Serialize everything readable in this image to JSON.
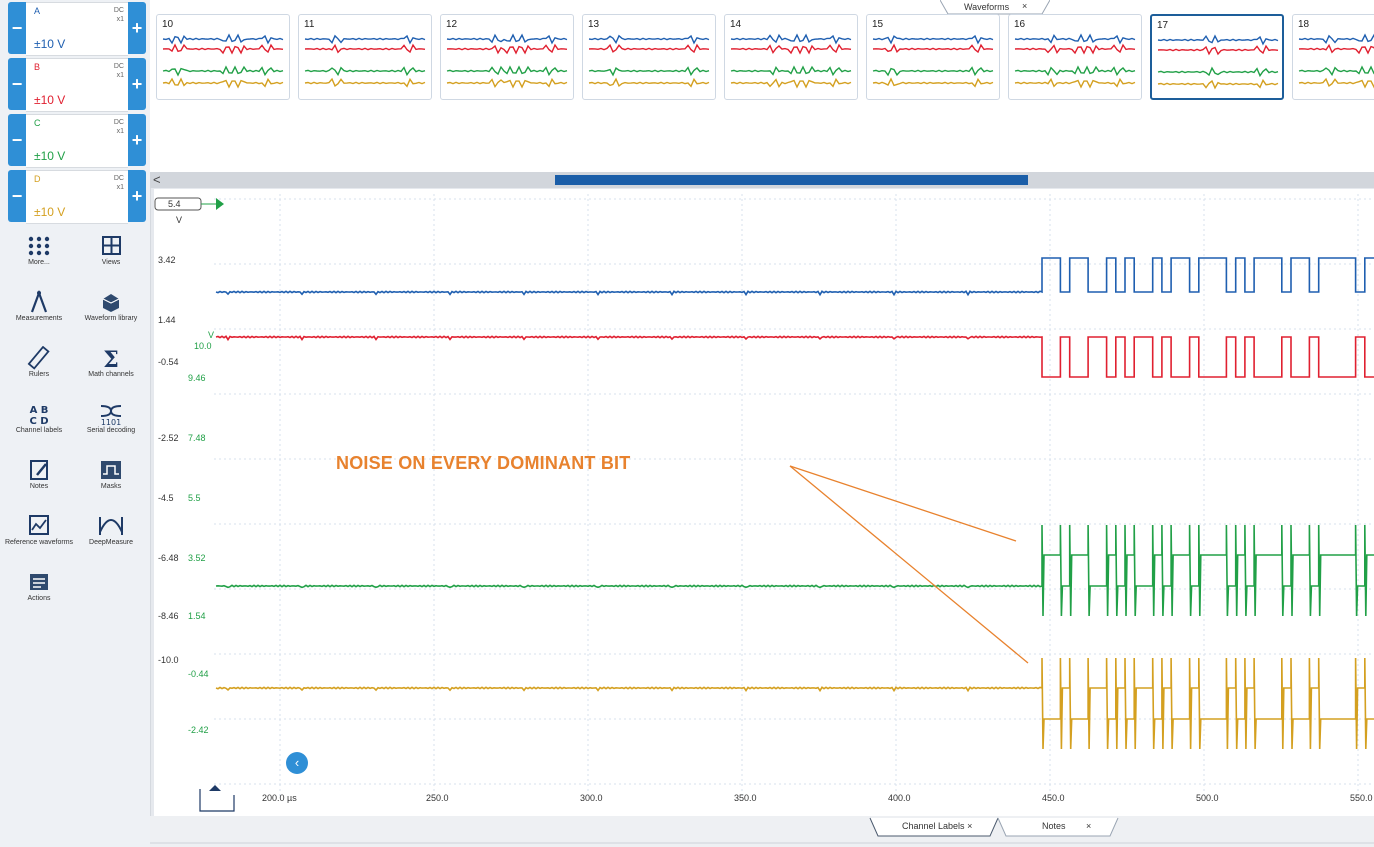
{
  "channels": [
    {
      "name": "A",
      "coupling": "DC",
      "probe": "x1",
      "range": "±10 V",
      "color": "#1f5fb0"
    },
    {
      "name": "B",
      "coupling": "DC",
      "probe": "x1",
      "range": "±10 V",
      "color": "#e02030"
    },
    {
      "name": "C",
      "coupling": "DC",
      "probe": "x1",
      "range": "±10 V",
      "color": "#21a047"
    },
    {
      "name": "D",
      "coupling": "DC",
      "probe": "x1",
      "range": "±10 V",
      "color": "#d4a020"
    }
  ],
  "tools": [
    {
      "label": "More...",
      "icon": "grid-dots-icon"
    },
    {
      "label": "Views",
      "icon": "views-icon"
    },
    {
      "label": "Measurements",
      "icon": "measurements-icon"
    },
    {
      "label": "Waveform library",
      "icon": "waveform-library-icon"
    },
    {
      "label": "Rulers",
      "icon": "rulers-icon"
    },
    {
      "label": "Math channels",
      "icon": "sigma-icon"
    },
    {
      "label": "Channel labels",
      "icon": "channel-labels-icon"
    },
    {
      "label": "Serial decoding",
      "icon": "serial-decoding-icon"
    },
    {
      "label": "Notes",
      "icon": "notes-icon"
    },
    {
      "label": "Masks",
      "icon": "masks-icon"
    },
    {
      "label": "Reference waveforms",
      "icon": "reference-waveforms-icon"
    },
    {
      "label": "DeepMeasure",
      "icon": "deepmeasure-icon"
    },
    {
      "label": "Actions",
      "icon": "actions-icon"
    }
  ],
  "waveforms_tab": {
    "label": "Waveforms",
    "close": "×"
  },
  "thumbnails": [
    {
      "number": "10",
      "selected": false
    },
    {
      "number": "11",
      "selected": false
    },
    {
      "number": "12",
      "selected": false
    },
    {
      "number": "13",
      "selected": false
    },
    {
      "number": "14",
      "selected": false
    },
    {
      "number": "15",
      "selected": false
    },
    {
      "number": "16",
      "selected": false
    },
    {
      "number": "17",
      "selected": true
    },
    {
      "number": "18",
      "selected": false
    }
  ],
  "scroll_left": "<",
  "scope": {
    "zoom_box": "5.4",
    "axis_unit_a": "V",
    "axis_unit_c": "V",
    "axis_a_ticks": [
      "3.42",
      "1.44",
      "-0.54",
      "-2.52",
      "-4.5",
      "-6.48",
      "-8.46",
      "-10.0"
    ],
    "axis_c_ticks": [
      "10.0",
      "9.46",
      "7.48",
      "5.5",
      "3.52",
      "1.54",
      "-0.44",
      "-2.42"
    ],
    "x_ticks": [
      "200.0 µs",
      "250.0",
      "300.0",
      "350.0",
      "400.0",
      "450.0",
      "500.0",
      "550.0"
    ],
    "annotation": "NOISE ON EVERY DOMINANT BIT",
    "annotation_color": "#e8822e"
  },
  "bottom_tabs": [
    {
      "label": "Channel Labels",
      "close": "×"
    },
    {
      "label": "Notes",
      "close": "×"
    }
  ]
}
